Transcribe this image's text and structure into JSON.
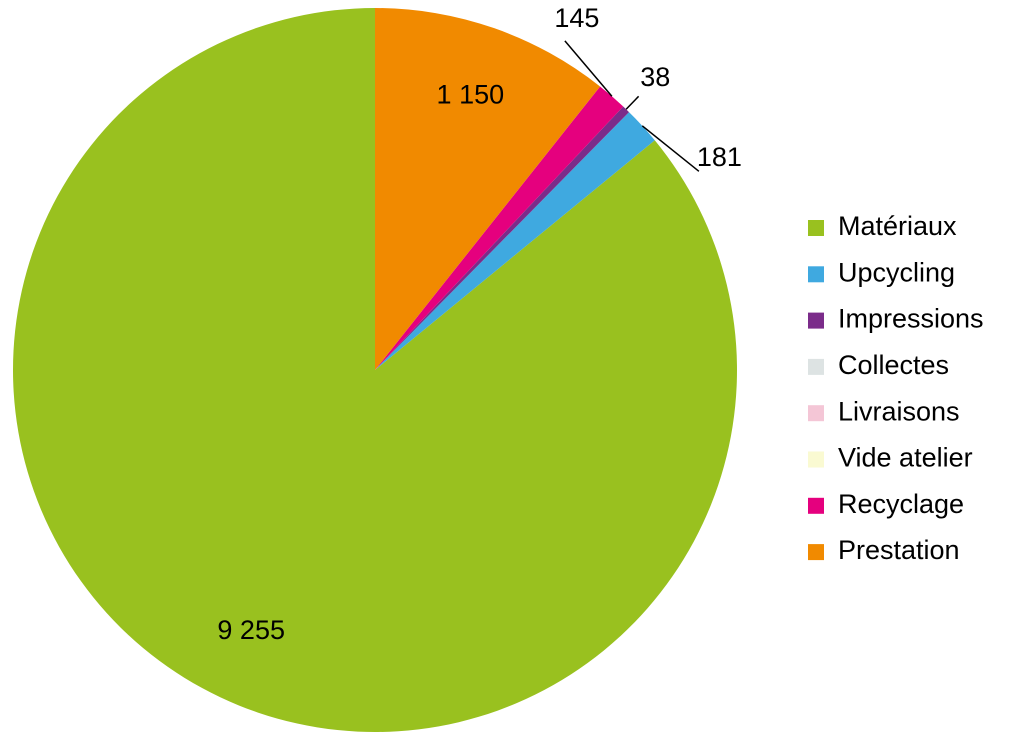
{
  "chart_data": {
    "type": "pie",
    "categories": [
      "Matériaux",
      "Upcycling",
      "Impressions",
      "Collectes",
      "Livraisons",
      "Vide atelier",
      "Recyclage",
      "Prestation"
    ],
    "values": [
      9255,
      181,
      38,
      0,
      0,
      0,
      145,
      1150
    ],
    "value_labels": [
      "9 255",
      "181",
      "38",
      null,
      null,
      null,
      "145",
      "1 150"
    ],
    "colors": [
      "#99c11f",
      "#3fa9e0",
      "#7b2c8a",
      "#dde3e3",
      "#f4c6d6",
      "#fafad2",
      "#e5007e",
      "#f18a00"
    ],
    "legend": "right"
  }
}
